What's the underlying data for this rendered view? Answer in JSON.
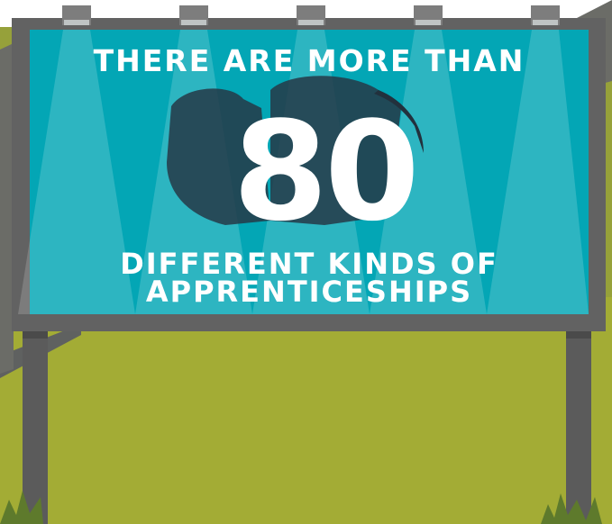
{
  "billboard": {
    "line_top": "THERE ARE MORE THAN",
    "number": "80",
    "line_bottom_1": "DIFFERENT KINDS OF",
    "line_bottom_2": "APPRENTICESHIPS"
  },
  "colors": {
    "sky": "#ffffff",
    "grass": "#a3ac35",
    "hill": "#96a13a",
    "board_panel": "#03a6b5",
    "board_frame": "#626262",
    "post": "#5b5b5b",
    "shadow": "#263846",
    "text": "#ffffff"
  }
}
